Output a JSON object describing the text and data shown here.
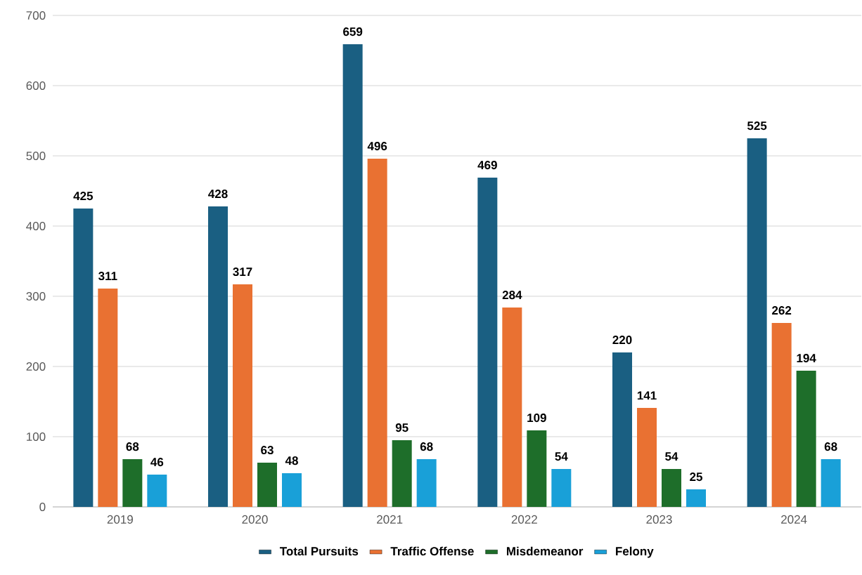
{
  "chart_data": {
    "type": "bar",
    "categories": [
      "2019",
      "2020",
      "2021",
      "2022",
      "2023",
      "2024"
    ],
    "series": [
      {
        "name": "Total Pursuits",
        "color": "#1a5f82",
        "values": [
          425,
          428,
          659,
          469,
          220,
          525
        ]
      },
      {
        "name": "Traffic Offense",
        "color": "#e97132",
        "values": [
          311,
          317,
          496,
          284,
          141,
          262
        ]
      },
      {
        "name": "Misdemeanor",
        "color": "#1e6e2a",
        "values": [
          68,
          63,
          95,
          109,
          54,
          194
        ]
      },
      {
        "name": "Felony",
        "color": "#19a0d8",
        "values": [
          46,
          48,
          68,
          54,
          25,
          68
        ]
      }
    ],
    "ylim": [
      0,
      700
    ],
    "yticks": [
      0,
      100,
      200,
      300,
      400,
      500,
      600,
      700
    ],
    "grid": "y",
    "legend": "bottom",
    "data_labels": true
  }
}
